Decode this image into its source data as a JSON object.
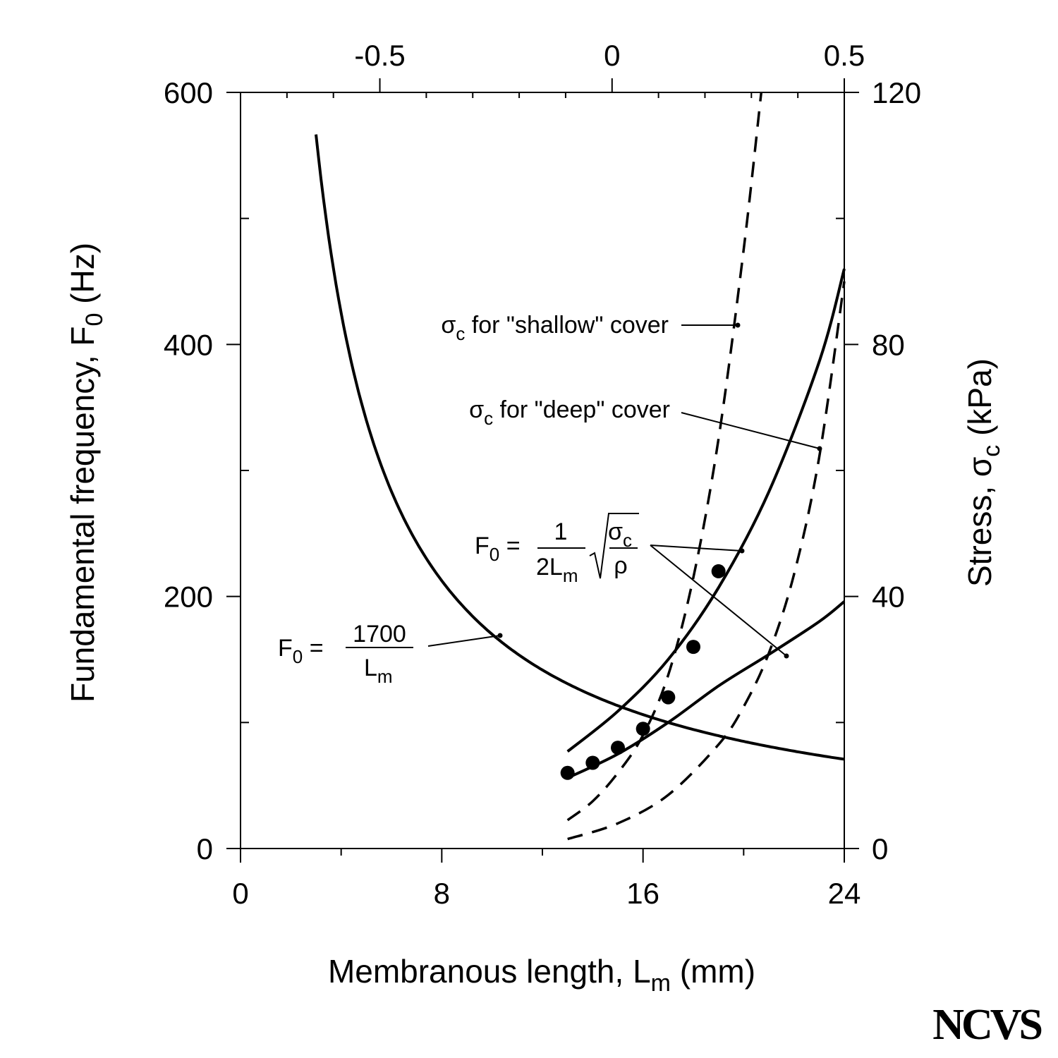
{
  "chart_data": {
    "type": "line",
    "xlabel": {
      "main": "Membranous length, L",
      "sub": "m",
      "unit": "(mm)"
    },
    "ylabel_left": {
      "main": "Fundamental frequency, F",
      "sub": "0",
      "unit": "(Hz)"
    },
    "ylabel_right": {
      "main": "Stress, σ",
      "sub": "c",
      "unit": "(kPa)"
    },
    "xlim": [
      0,
      24
    ],
    "ylim_left": [
      0,
      600
    ],
    "ylim_right": [
      0,
      120
    ],
    "top_axis_lim": [
      -0.8,
      0.5
    ],
    "x_ticks": [
      "0",
      "8",
      "16",
      "24"
    ],
    "y_left_ticks": [
      "0",
      "200",
      "400",
      "600"
    ],
    "y_right_ticks": [
      "0",
      "40",
      "80",
      "120"
    ],
    "top_ticks": [
      "-0.5",
      "0",
      "0.5"
    ],
    "series": [
      {
        "axis": "left",
        "style": "solid",
        "formula": "1700/x",
        "x_range": [
          3,
          24
        ]
      },
      {
        "axis": "left",
        "style": "solid",
        "x": [
          13,
          15,
          17,
          19,
          21,
          23,
          24
        ],
        "y": [
          77,
          109,
          150,
          207,
          283,
          386,
          460
        ]
      },
      {
        "axis": "left",
        "style": "solid",
        "x": [
          13,
          15,
          17,
          19,
          21,
          23,
          24
        ],
        "y": [
          56,
          75,
          100,
          129,
          154,
          180,
          196
        ]
      },
      {
        "axis": "right",
        "style": "dashed",
        "x": [
          13,
          14,
          15,
          16,
          17,
          18,
          19,
          20,
          20.7
        ],
        "y": [
          4.5,
          7.5,
          12,
          18,
          27.5,
          43,
          65,
          95,
          120
        ]
      },
      {
        "axis": "right",
        "style": "dashed",
        "x": [
          13,
          15,
          17,
          19,
          20,
          21,
          22,
          23,
          24
        ],
        "y": [
          1.5,
          4,
          8.5,
          16.5,
          22.5,
          31,
          43.5,
          62,
          90
        ]
      }
    ],
    "points": {
      "x": [
        13,
        14,
        15,
        16,
        17,
        18,
        19
      ],
      "y": [
        60,
        68,
        80,
        95,
        120,
        160,
        220
      ]
    },
    "annotations": [
      {
        "id": "shallow",
        "parts": [
          "σ",
          "c",
          " for \"shallow\" cover"
        ]
      },
      {
        "id": "deep",
        "parts": [
          "σ",
          "c",
          " for \"deep\" cover"
        ]
      },
      {
        "id": "formula-stress",
        "lhs": "F",
        "lhs_sub": "0",
        "eq": "=",
        "num": "1",
        "den": "2L",
        "den_sub": "m",
        "rad_num": "σ",
        "rad_num_sub": "c",
        "rad_den": "ρ"
      },
      {
        "id": "formula-length",
        "lhs": "F",
        "lhs_sub": "0",
        "eq": "=",
        "num": "1700",
        "den": "L",
        "den_sub": "m"
      }
    ],
    "logo": "NCVS"
  }
}
